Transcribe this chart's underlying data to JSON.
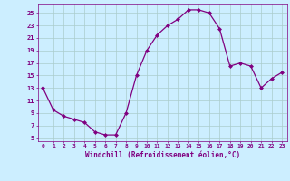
{
  "x": [
    0,
    1,
    2,
    3,
    4,
    5,
    6,
    7,
    8,
    9,
    10,
    11,
    12,
    13,
    14,
    15,
    16,
    17,
    18,
    19,
    20,
    21,
    22,
    23
  ],
  "y": [
    13,
    9.5,
    8.5,
    8,
    7.5,
    6,
    5.5,
    5.5,
    9,
    15,
    19,
    21.5,
    23,
    24,
    25.5,
    25.5,
    25,
    22.5,
    16.5,
    17,
    16.5,
    13,
    14.5,
    15.5
  ],
  "line_color": "#800080",
  "marker": "D",
  "marker_size": 2.0,
  "bg_color": "#cceeff",
  "grid_color": "#aacccc",
  "xlabel": "Windchill (Refroidissement éolien,°C)",
  "xlabel_color": "#800080",
  "tick_color": "#800080",
  "yticks": [
    5,
    7,
    9,
    11,
    13,
    15,
    17,
    19,
    21,
    23,
    25
  ],
  "ylim": [
    4.5,
    26.5
  ],
  "xlim": [
    -0.5,
    23.5
  ],
  "xticks": [
    0,
    1,
    2,
    3,
    4,
    5,
    6,
    7,
    8,
    9,
    10,
    11,
    12,
    13,
    14,
    15,
    16,
    17,
    18,
    19,
    20,
    21,
    22,
    23
  ]
}
